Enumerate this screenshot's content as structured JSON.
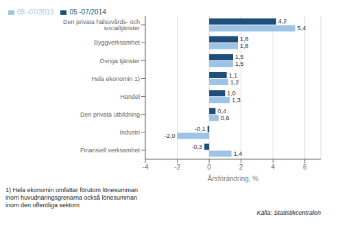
{
  "chart_data": {
    "type": "bar",
    "orientation": "horizontal",
    "categories": [
      "Den privata hälsovårds- och socialtjänster",
      "Byggverksamhet",
      "Övriga tjänster",
      "Hela ekonomin 1)",
      "Handel",
      "Den privata utbildning",
      "Industri",
      "Finansiell verksamhet"
    ],
    "series": [
      {
        "name": "05 -07/2014",
        "color": "#1f4e79",
        "values": [
          4.2,
          1.8,
          1.5,
          1.1,
          1.0,
          0.4,
          -0.1,
          -0.3
        ],
        "value_labels": [
          "4,2",
          "1,8",
          "1,5",
          "1,1",
          "1,0",
          "0,4",
          "-0,1",
          "-0,3"
        ]
      },
      {
        "name": "05 -07/2013",
        "color": "#9dc3e6",
        "values": [
          5.4,
          1.8,
          1.5,
          1.2,
          1.3,
          0.6,
          -2.0,
          1.4
        ],
        "value_labels": [
          "5,4",
          "1,8",
          "1,5",
          "1,2",
          "1,3",
          "0,6",
          "-2,0",
          "1,4"
        ]
      }
    ],
    "xlabel": "Årsförändring, %",
    "xlim": [
      -4,
      7
    ],
    "xticks": [
      -4,
      -2,
      0,
      2,
      4,
      6
    ],
    "grid": true,
    "legend": "upper left",
    "data_labels": true,
    "annotations": [
      "1) Hela ekonomin omfattar förutom lönesumman",
      "inom huvudnäringsgrenarna också lönesumman",
      "inom den offentliga sektorn",
      "Källa: Statistikcentralen"
    ]
  }
}
